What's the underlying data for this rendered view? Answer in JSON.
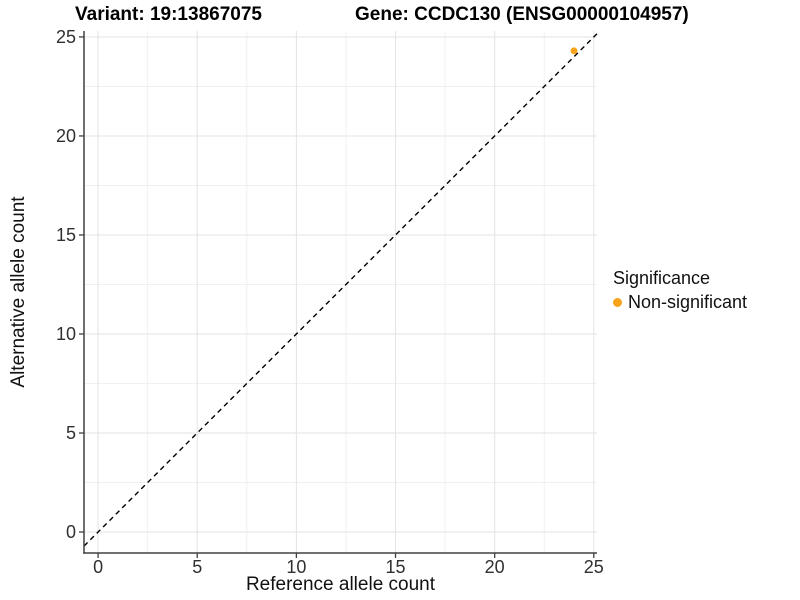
{
  "titles": {
    "variant": "Variant: 19:13867075",
    "gene": "Gene: CCDC130 (ENSG00000104957)"
  },
  "axes": {
    "x_label": "Reference allele count",
    "y_label": "Alternative allele count"
  },
  "legend": {
    "title": "Significance",
    "items": [
      {
        "label": "Non-significant",
        "color": "#FAA318"
      }
    ]
  },
  "chart_data": {
    "type": "scatter",
    "title": "Variant: 19:13867075  |  Gene: CCDC130 (ENSG00000104957)",
    "xlabel": "Reference allele count",
    "ylabel": "Alternative allele count",
    "x_ticks": [
      0,
      5,
      10,
      15,
      20,
      25
    ],
    "y_ticks": [
      0,
      5,
      10,
      15,
      20,
      25
    ],
    "xlim": [
      -0.71,
      25.16
    ],
    "ylim": [
      -1.06,
      25.3
    ],
    "grid": "major+minor",
    "legend_position": "right",
    "series": [
      {
        "name": "Non-significant",
        "color": "#FAA318",
        "points": [
          {
            "x": 24,
            "y": 24.3
          }
        ]
      }
    ],
    "reference_line": {
      "style": "dashed",
      "slope": 1,
      "intercept": 0,
      "color": "#000000"
    },
    "colors": {
      "grid_major": "#E3E3E3",
      "grid_minor": "#F0F0F0",
      "axis_line": "#404040"
    }
  }
}
